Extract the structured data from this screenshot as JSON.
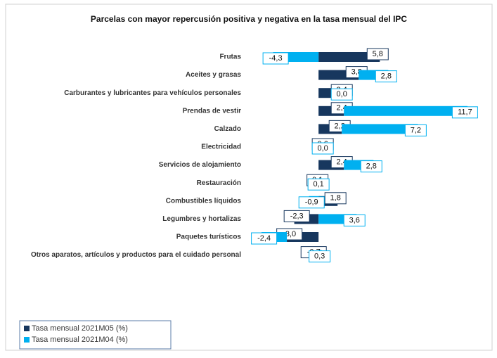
{
  "chart_data": {
    "type": "stacked-bar",
    "title": "Parcelas con mayor repercusión positiva y negativa en la tasa mensual del IPC",
    "categories": [
      "Frutas",
      "Aceites y grasas",
      "Carburantes y lubricantes para vehículos personales",
      "Prendas de vestir",
      "Calzado",
      "Electricidad",
      "Servicios de alojamiento",
      "Restauración",
      "Combustibles líquidos",
      "Legumbres y hortalizas",
      "Paquetes turísticos",
      "Otros aparatos, artículos y productos para el cuidado personal"
    ],
    "series": [
      {
        "name": "Tasa mensual 2021M05 (%)",
        "color": "#17375e",
        "values": [
          5.8,
          3.8,
          2.4,
          2.4,
          2.2,
          0.6,
          2.4,
          0.1,
          1.8,
          -2.3,
          -3.0,
          -0.7
        ],
        "value_labels": [
          "5,8",
          "3,8",
          "2,4",
          "2,4",
          "2,2",
          "0,6",
          "2,4",
          "0,1",
          "1,8",
          "-2,3",
          "-3,0",
          "-0,7"
        ]
      },
      {
        "name": "Tasa mensual 2021M04 (%)",
        "color": "#00b0f0",
        "values": [
          -4.3,
          2.8,
          0.0,
          11.7,
          7.2,
          0.0,
          2.8,
          0.1,
          -0.9,
          3.6,
          -2.4,
          0.3
        ],
        "value_labels": [
          "-4,3",
          "2,8",
          "0,0",
          "11,7",
          "7,2",
          "0,0",
          "2,8",
          "0,1",
          "-0,9",
          "3,6",
          "-2,4",
          "0,3"
        ]
      }
    ]
  }
}
